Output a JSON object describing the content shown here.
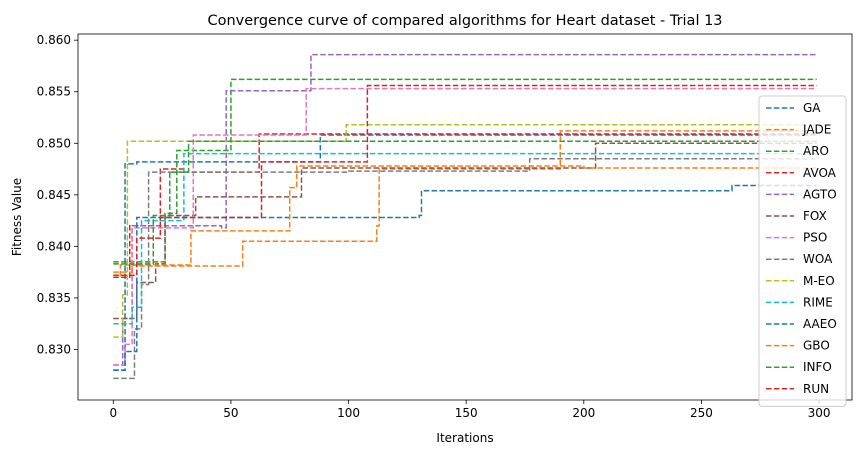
{
  "chart_data": {
    "type": "line",
    "title": "Convergence curve of compared algorithms for Heart dataset - Trial 13",
    "xlabel": "Iterations",
    "ylabel": "Fitness Value",
    "xlim": [
      -15,
      314
    ],
    "ylim": [
      0.8251,
      0.8606
    ],
    "x_ticks": [
      0,
      50,
      100,
      150,
      200,
      250,
      300
    ],
    "x_tick_labels": [
      "0",
      "50",
      "100",
      "150",
      "200",
      "250",
      "300"
    ],
    "y_ticks": [
      0.83,
      0.835,
      0.84,
      0.845,
      0.85,
      0.855,
      0.86
    ],
    "y_tick_labels": [
      "0.830",
      "0.835",
      "0.840",
      "0.845",
      "0.850",
      "0.855",
      "0.860"
    ],
    "grid": false,
    "legend_position": "right",
    "line_style": "dashed-steps",
    "series": [
      {
        "name": "GA",
        "color": "#1f77b4",
        "points": [
          [
            0,
            0.828
          ],
          [
            5,
            0.848
          ],
          [
            10,
            0.8482
          ],
          [
            88,
            0.8508
          ],
          [
            200,
            0.8508
          ],
          [
            299,
            0.8508
          ]
        ]
      },
      {
        "name": "JADE",
        "color": "#ff7f0e",
        "points": [
          [
            0,
            0.837
          ],
          [
            3,
            0.8382
          ],
          [
            10,
            0.8381
          ],
          [
            55,
            0.8405
          ],
          [
            112,
            0.842
          ],
          [
            113,
            0.8475
          ],
          [
            190,
            0.8512
          ],
          [
            299,
            0.8512
          ]
        ]
      },
      {
        "name": "ARO",
        "color": "#2ca02c",
        "points": [
          [
            0,
            0.8385
          ],
          [
            20,
            0.8385
          ],
          [
            22,
            0.8432
          ],
          [
            27,
            0.8493
          ],
          [
            50,
            0.8562
          ],
          [
            299,
            0.8562
          ]
        ]
      },
      {
        "name": "AVOA",
        "color": "#d62728",
        "points": [
          [
            0,
            0.837
          ],
          [
            7,
            0.842
          ],
          [
            14,
            0.842
          ],
          [
            20,
            0.8475
          ],
          [
            30,
            0.8472
          ],
          [
            62,
            0.8509
          ],
          [
            106,
            0.8509
          ],
          [
            299,
            0.8509
          ]
        ]
      },
      {
        "name": "AGTO",
        "color": "#9467bd",
        "points": [
          [
            0,
            0.8285
          ],
          [
            4,
            0.833
          ],
          [
            8,
            0.842
          ],
          [
            46,
            0.8418
          ],
          [
            48,
            0.8551
          ],
          [
            84,
            0.8586
          ],
          [
            299,
            0.8586
          ]
        ]
      },
      {
        "name": "FOX",
        "color": "#8c564b",
        "points": [
          [
            0,
            0.833
          ],
          [
            10,
            0.8365
          ],
          [
            18,
            0.8383
          ],
          [
            22,
            0.843
          ],
          [
            35,
            0.8448
          ],
          [
            80,
            0.8476
          ],
          [
            150,
            0.8476
          ],
          [
            205,
            0.85
          ],
          [
            299,
            0.85
          ]
        ]
      },
      {
        "name": "PSO",
        "color": "#e377c2",
        "points": [
          [
            0,
            0.8285
          ],
          [
            5,
            0.8305
          ],
          [
            8,
            0.8418
          ],
          [
            34,
            0.8508
          ],
          [
            82,
            0.8553
          ],
          [
            299,
            0.8553
          ]
        ]
      },
      {
        "name": "WOA",
        "color": "#7f7f7f",
        "points": [
          [
            0,
            0.8272
          ],
          [
            9,
            0.832
          ],
          [
            12,
            0.8363
          ],
          [
            15,
            0.8472
          ],
          [
            100,
            0.8473
          ],
          [
            177,
            0.8485
          ],
          [
            299,
            0.8485
          ]
        ]
      },
      {
        "name": "M-EO",
        "color": "#bcbd22",
        "points": [
          [
            0,
            0.8312
          ],
          [
            4,
            0.8353
          ],
          [
            6,
            0.8502
          ],
          [
            99,
            0.8518
          ],
          [
            299,
            0.8518
          ]
        ]
      },
      {
        "name": "RIME",
        "color": "#17becf",
        "points": [
          [
            0,
            0.8325
          ],
          [
            8,
            0.8341
          ],
          [
            12,
            0.8425
          ],
          [
            30,
            0.849
          ],
          [
            150,
            0.849
          ],
          [
            299,
            0.849
          ]
        ]
      },
      {
        "name": "AAEO",
        "color": "#1f77b4",
        "points": [
          [
            0,
            0.828
          ],
          [
            5,
            0.8298
          ],
          [
            10,
            0.8428
          ],
          [
            130,
            0.843
          ],
          [
            131,
            0.8454
          ],
          [
            263,
            0.8459
          ],
          [
            299,
            0.8459
          ]
        ]
      },
      {
        "name": "GBO",
        "color": "#ff7f0e",
        "points": [
          [
            0,
            0.8375
          ],
          [
            8,
            0.8382
          ],
          [
            33,
            0.8415
          ],
          [
            37,
            0.8415
          ],
          [
            38,
            0.8415
          ],
          [
            75,
            0.8457
          ],
          [
            78,
            0.8478
          ],
          [
            200,
            0.8476
          ],
          [
            299,
            0.8476
          ]
        ]
      },
      {
        "name": "INFO",
        "color": "#2ca02c",
        "points": [
          [
            0,
            0.8383
          ],
          [
            10,
            0.8383
          ],
          [
            17,
            0.843
          ],
          [
            24,
            0.8472
          ],
          [
            32,
            0.8502
          ],
          [
            299,
            0.8502
          ]
        ]
      },
      {
        "name": "RUN",
        "color": "#d62728",
        "points": [
          [
            0,
            0.8372
          ],
          [
            10,
            0.8408
          ],
          [
            20,
            0.8428
          ],
          [
            52,
            0.8428
          ],
          [
            63,
            0.8482
          ],
          [
            108,
            0.8556
          ],
          [
            299,
            0.8556
          ]
        ]
      }
    ]
  }
}
